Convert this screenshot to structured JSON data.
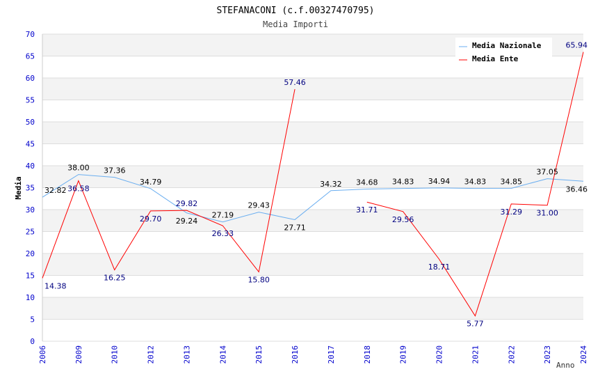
{
  "chart_data": {
    "type": "line",
    "title": "STEFANACONI (c.f.00327470795)",
    "subtitle": "Media Importi",
    "xlabel": "Anno",
    "ylabel": "Media",
    "ylim": [
      0,
      70
    ],
    "yticks": [
      "0",
      "5",
      "10",
      "15",
      "20",
      "25",
      "30",
      "35",
      "40",
      "45",
      "50",
      "55",
      "60",
      "65",
      "70"
    ],
    "categories": [
      "2006",
      "2009",
      "2010",
      "2012",
      "2013",
      "2014",
      "2015",
      "2016",
      "2017",
      "2018",
      "2019",
      "2020",
      "2021",
      "2022",
      "2023",
      "2024"
    ],
    "legend_position": "top-right",
    "series": [
      {
        "name": "Media Nazionale",
        "color": "#6aaef0",
        "label_color": "#000000",
        "values": [
          32.82,
          38.0,
          37.36,
          34.79,
          29.24,
          27.19,
          29.43,
          27.71,
          34.32,
          34.68,
          34.83,
          34.94,
          34.83,
          34.85,
          37.05,
          36.46
        ],
        "labels": [
          "32.82",
          "38.00",
          "37.36",
          "34.79",
          "29.24",
          "27.19",
          "29.43",
          "27.71",
          "34.32",
          "34.68",
          "34.83",
          "34.94",
          "34.83",
          "34.85",
          "37.05",
          "36.46"
        ]
      },
      {
        "name": "Media Ente",
        "color": "#ff0000",
        "label_color": "#000080",
        "values": [
          14.38,
          36.58,
          16.25,
          29.7,
          29.82,
          26.33,
          15.8,
          57.46,
          null,
          31.71,
          29.56,
          18.71,
          5.77,
          31.29,
          31.0,
          65.94
        ],
        "labels": [
          "14.38",
          "36.58",
          "16.25",
          "29.70",
          "29.82",
          "26.33",
          "15.80",
          "57.46",
          "",
          "31.71",
          "29.56",
          "18.71",
          "5.77",
          "31.29",
          "31.00",
          "65.94"
        ]
      }
    ]
  }
}
